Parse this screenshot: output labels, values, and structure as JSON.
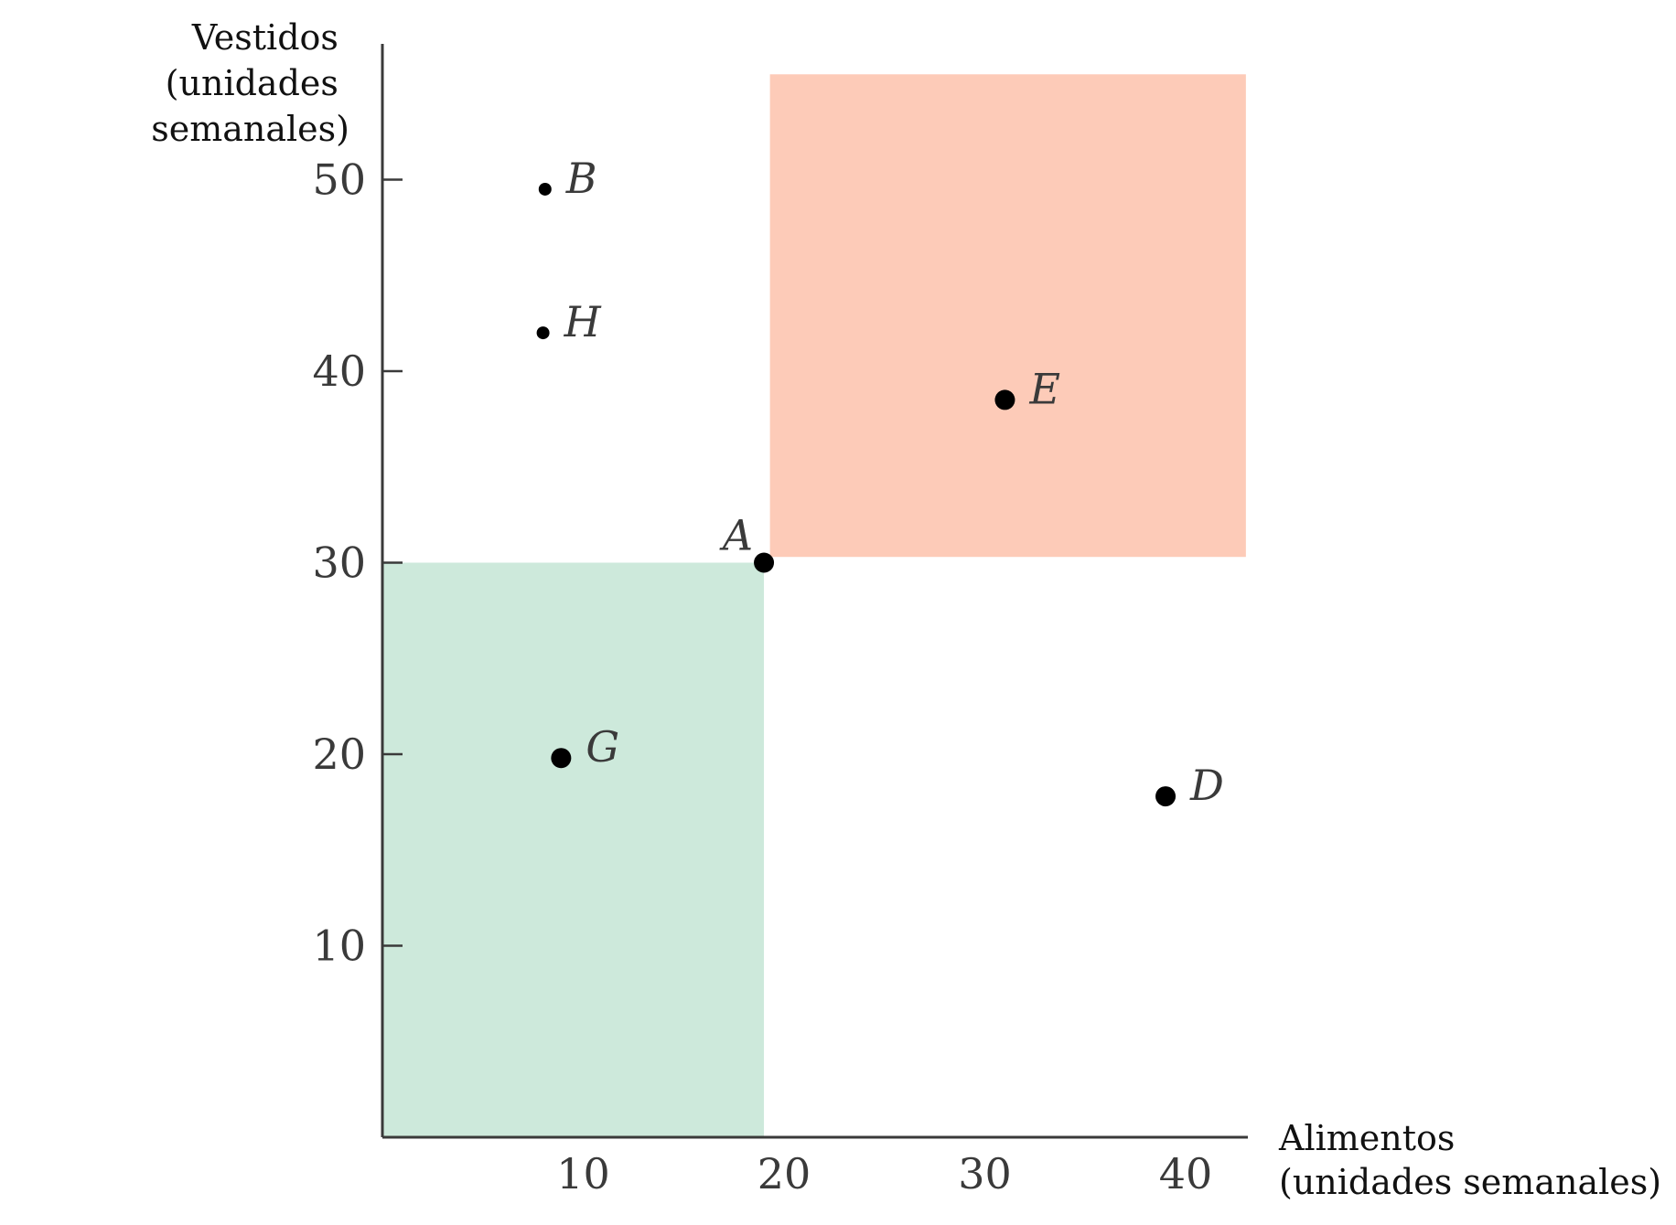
{
  "chart_data": {
    "type": "scatter",
    "title": "",
    "ylabel": [
      "Vestidos",
      "(unidades",
      "semanales)"
    ],
    "xlabel": [
      "Alimentos",
      "(unidades semanales)"
    ],
    "xlim": [
      0,
      43
    ],
    "ylim": [
      0,
      57.5
    ],
    "xticks": [
      10,
      20,
      30,
      40
    ],
    "yticks": [
      10,
      20,
      30,
      40,
      50
    ],
    "grid": false,
    "regions": [
      {
        "name": "less-preferred",
        "x": [
          0,
          19
        ],
        "y": [
          0,
          30
        ],
        "color": "#cde9db"
      },
      {
        "name": "more-preferred",
        "x": [
          19.3,
          43
        ],
        "y": [
          30.3,
          55.5
        ],
        "color": "#fdcbb8"
      }
    ],
    "points": [
      {
        "label": "A",
        "x": 19,
        "y": 30,
        "size": "large"
      },
      {
        "label": "B",
        "x": 8.1,
        "y": 49.5,
        "size": "small"
      },
      {
        "label": "H",
        "x": 8,
        "y": 42,
        "size": "small"
      },
      {
        "label": "E",
        "x": 31,
        "y": 38.5,
        "size": "large"
      },
      {
        "label": "G",
        "x": 8.9,
        "y": 19.8,
        "size": "large"
      },
      {
        "label": "D",
        "x": 39,
        "y": 17.8,
        "size": "large"
      }
    ]
  }
}
